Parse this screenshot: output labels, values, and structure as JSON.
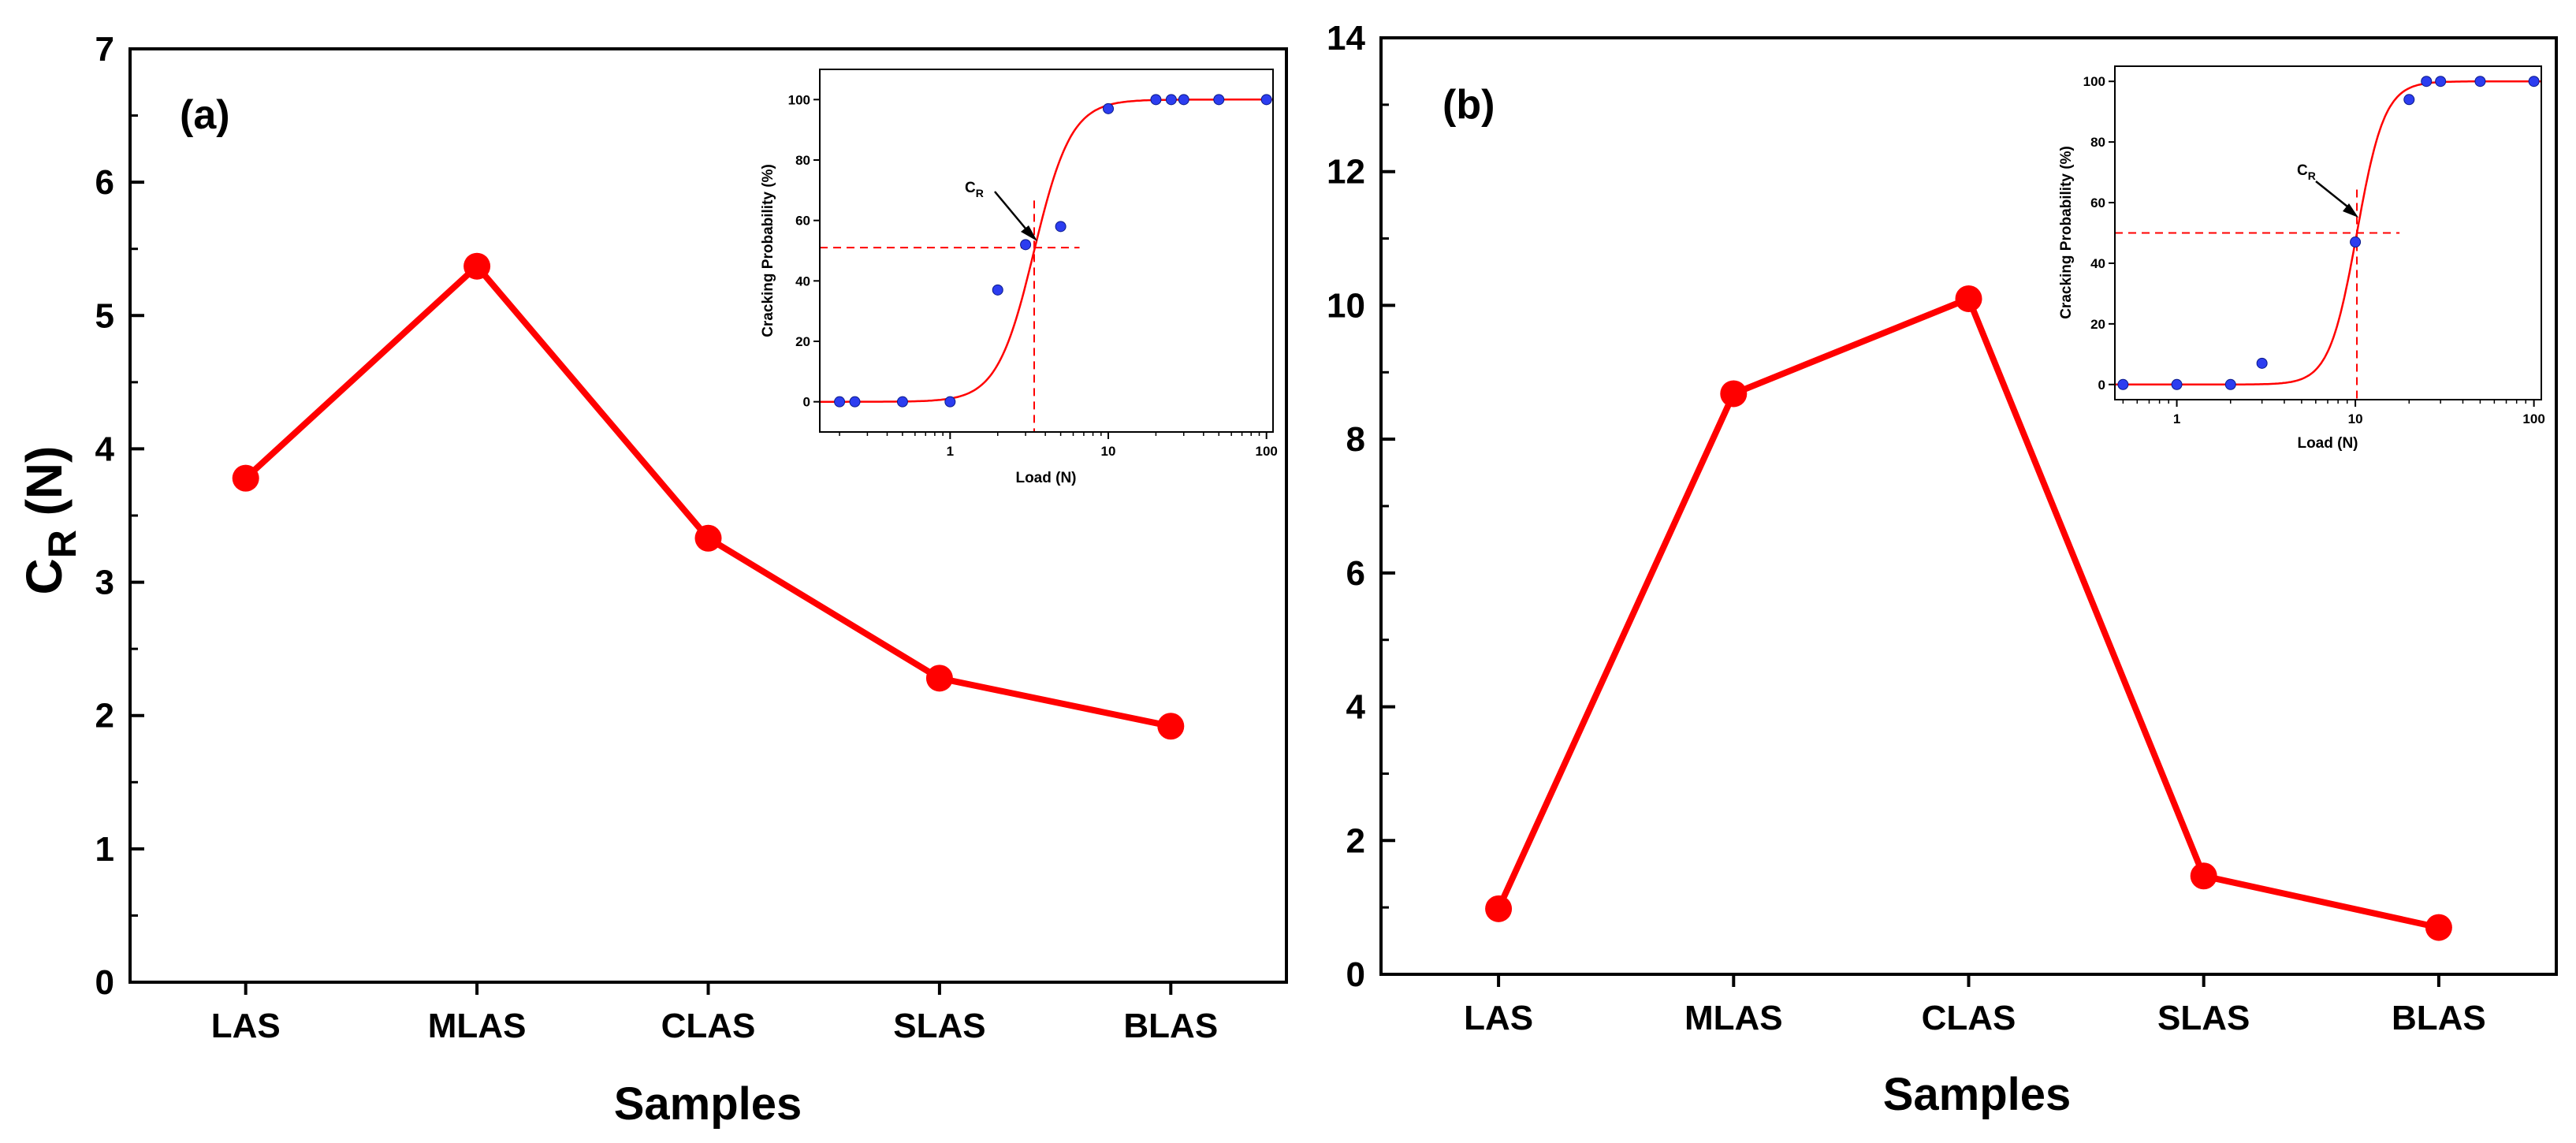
{
  "chart_data": [
    {
      "type": "line",
      "panel_label": "(a)",
      "categories": [
        "LAS",
        "MLAS",
        "CLAS",
        "SLAS",
        "BLAS"
      ],
      "values": [
        3.78,
        5.37,
        3.33,
        2.28,
        1.92
      ],
      "xlabel": "Samples",
      "ylabel_main": "C",
      "ylabel_sub": "R",
      "ylabel_unit": "(N)",
      "ylim": [
        0,
        7
      ],
      "yticks": [
        0,
        1,
        2,
        3,
        4,
        5,
        6,
        7
      ],
      "color": "#ff0000",
      "inset": {
        "type": "scatter",
        "xlabel": "Load (N)",
        "ylabel": "Cracking Probability (%)",
        "xscale": "log",
        "xlim": [
          0.15,
          110
        ],
        "ylim": [
          -10,
          110
        ],
        "xticks": [
          1,
          10,
          100
        ],
        "yticks": [
          0,
          20,
          40,
          60,
          80,
          100
        ],
        "points": [
          [
            0.2,
            0
          ],
          [
            0.25,
            0
          ],
          [
            0.5,
            0
          ],
          [
            1,
            0
          ],
          [
            2,
            37
          ],
          [
            3,
            52
          ],
          [
            5,
            58
          ],
          [
            10,
            97
          ],
          [
            20,
            100
          ],
          [
            25,
            100
          ],
          [
            30,
            100
          ],
          [
            50,
            100
          ],
          [
            100,
            100
          ]
        ],
        "fit_midpoint": 3.4,
        "fit_slope": 3.7,
        "critical_load": 3.4,
        "critical_probability": 51,
        "annotation_main": "C",
        "annotation_sub": "R",
        "point_color": "#2c3df0",
        "fit_color": "#ff0000"
      }
    },
    {
      "type": "line",
      "panel_label": "(b)",
      "categories": [
        "LAS",
        "MLAS",
        "CLAS",
        "SLAS",
        "BLAS"
      ],
      "values": [
        0.98,
        8.68,
        10.1,
        1.47,
        0.7
      ],
      "xlabel": "Samples",
      "ylabel_main": "",
      "ylabel_sub": "",
      "ylabel_unit": "",
      "ylim": [
        0,
        14
      ],
      "yticks": [
        0,
        2,
        4,
        6,
        8,
        10,
        12,
        14
      ],
      "color": "#ff0000",
      "inset": {
        "type": "scatter",
        "xlabel": "Load (N)",
        "ylabel": "Cracking Probability (%)",
        "xscale": "log",
        "xlim": [
          0.45,
          110
        ],
        "ylim": [
          -5,
          105
        ],
        "xticks": [
          1,
          10,
          100
        ],
        "yticks": [
          0,
          20,
          40,
          60,
          80,
          100
        ],
        "points": [
          [
            0.5,
            0
          ],
          [
            1,
            0
          ],
          [
            2,
            0
          ],
          [
            3,
            7
          ],
          [
            10,
            47
          ],
          [
            20,
            94
          ],
          [
            25,
            100
          ],
          [
            30,
            100
          ],
          [
            50,
            100
          ],
          [
            100,
            100
          ]
        ],
        "fit_midpoint": 10.2,
        "fit_slope": 5.6,
        "critical_load": 10.2,
        "critical_probability": 50,
        "annotation_main": "C",
        "annotation_sub": "R",
        "point_color": "#2c3df0",
        "fit_color": "#ff0000"
      }
    }
  ]
}
